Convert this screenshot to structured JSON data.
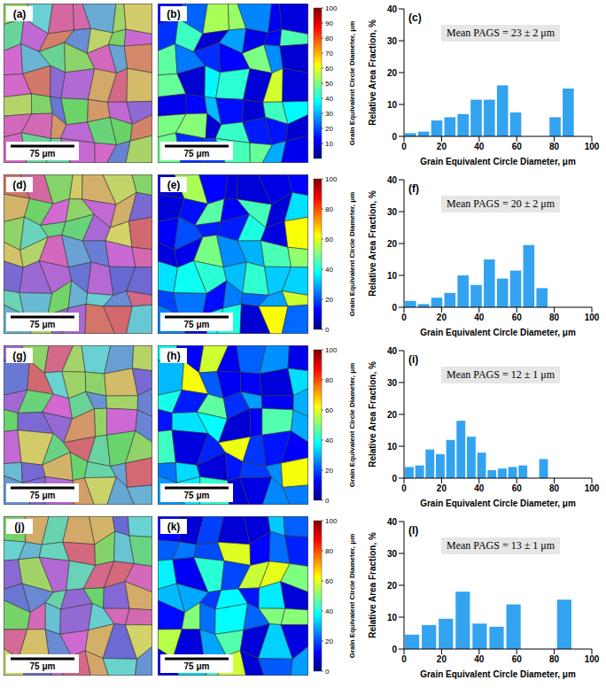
{
  "chart_data": [
    {
      "type": "histogram",
      "panel": "(c)",
      "annotation": "Mean PAGS = 23 ± 2 μm",
      "xlabel": "Grain Equivalent Circle Diameter, μm",
      "ylabel": "Relative Area Fraction, %",
      "bins": [
        0,
        7,
        14,
        21,
        28,
        35,
        42,
        49,
        56,
        63,
        70,
        77,
        84,
        91
      ],
      "values": [
        1,
        1.5,
        5,
        6,
        7,
        11.5,
        11.5,
        16,
        7.5,
        0,
        0,
        6,
        15
      ],
      "color": "#33a3f0",
      "xlim": [
        0,
        100
      ],
      "ylim": [
        0,
        40
      ],
      "xticks": [
        0,
        20,
        40,
        60,
        80,
        100
      ],
      "yticks": [
        0,
        10,
        20,
        30,
        40
      ]
    },
    {
      "type": "histogram",
      "panel": "(f)",
      "annotation": "Mean PAGS = 20 ± 2 μm",
      "xlabel": "Grain Equivalent Circle Diameter, μm",
      "ylabel": "Relative Area Fraction, %",
      "bins": [
        0,
        7,
        14,
        21,
        28,
        35,
        42,
        49,
        56,
        63,
        70,
        77
      ],
      "values": [
        2,
        1,
        3,
        4.5,
        10,
        7,
        15,
        9,
        11.5,
        19.5,
        6
      ],
      "color": "#33a3f0",
      "xlim": [
        0,
        100
      ],
      "ylim": [
        0,
        40
      ],
      "xticks": [
        0,
        20,
        40,
        60,
        80,
        100
      ],
      "yticks": [
        0,
        10,
        20,
        30,
        40
      ]
    },
    {
      "type": "histogram",
      "panel": "(i)",
      "annotation": "Mean PAGS = 12 ± 1 μm",
      "xlabel": "Grain Equivalent Circle Diameter, μm",
      "ylabel": "Relative Area Fraction, %",
      "bins": [
        0,
        5.5,
        11,
        16.5,
        22,
        27.5,
        33,
        38.5,
        44,
        49.5,
        55,
        60.5,
        66,
        71.5,
        77
      ],
      "values": [
        3.5,
        4,
        9,
        7.5,
        12,
        18,
        13,
        8,
        2.5,
        3,
        3.5,
        4,
        0,
        6
      ],
      "color": "#33a3f0",
      "xlim": [
        0,
        100
      ],
      "ylim": [
        0,
        40
      ],
      "xticks": [
        0,
        20,
        40,
        60,
        80,
        100
      ],
      "yticks": [
        0,
        10,
        20,
        30,
        40
      ]
    },
    {
      "type": "histogram",
      "panel": "(l)",
      "annotation": "Mean PAGS = 13 ± 1 μm",
      "xlabel": "Grain Equivalent Circle Diameter, μm",
      "ylabel": "Relative Area Fraction, %",
      "bins": [
        0,
        9,
        18,
        27,
        36,
        45,
        54,
        63,
        72,
        81,
        90
      ],
      "values": [
        4.5,
        7.5,
        9.5,
        18,
        8,
        7,
        14,
        0,
        0,
        15.5
      ],
      "color": "#33a3f0",
      "xlim": [
        0,
        100
      ],
      "ylim": [
        0,
        40
      ],
      "xticks": [
        0,
        20,
        40,
        60,
        80,
        100
      ],
      "yticks": [
        0,
        10,
        20,
        30,
        40
      ]
    }
  ],
  "maps": [
    {
      "panel": "(a)",
      "scale_bar": "75 μm"
    },
    {
      "panel": "(d)",
      "scale_bar": "75 μm"
    },
    {
      "panel": "(g)",
      "scale_bar": "75 μm"
    },
    {
      "panel": "(j)",
      "scale_bar": "75 μm"
    }
  ],
  "color_maps": [
    {
      "panel": "(b)",
      "scale_bar": "75 μm",
      "colorbar": {
        "label": "Grain Equivalent Circle Diameter, μm",
        "range": [
          0,
          100
        ],
        "ticks": [
          10,
          20,
          30,
          40,
          50,
          60,
          70,
          80,
          90,
          100
        ]
      }
    },
    {
      "panel": "(e)",
      "scale_bar": "75 μm",
      "colorbar": {
        "label": "Grain Equivalent Circle Diameter, μm",
        "range": [
          0,
          100
        ],
        "ticks": [
          0,
          20,
          40,
          60,
          80,
          100
        ]
      }
    },
    {
      "panel": "(h)",
      "scale_bar": "75 μm",
      "colorbar": {
        "label": "Grain Equivalent Circle Diameter, μm",
        "range": [
          0,
          100
        ],
        "ticks": [
          0,
          20,
          40,
          60,
          80,
          100
        ]
      }
    },
    {
      "panel": "(k)",
      "scale_bar": "75 μm",
      "colorbar": {
        "label": "Grain Equivalent Circle Diameter, μm",
        "range": [
          0,
          100
        ],
        "ticks": [
          0,
          20,
          40,
          60,
          80,
          100
        ]
      }
    }
  ]
}
